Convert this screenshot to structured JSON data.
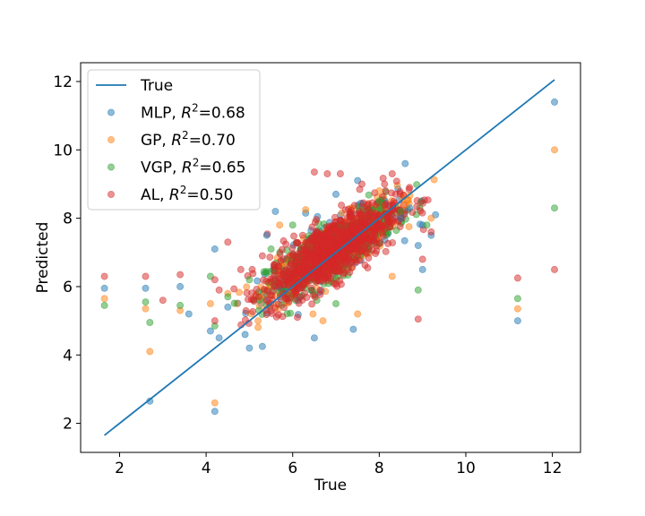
{
  "chart_data": {
    "type": "scatter",
    "xlabel": "True",
    "ylabel": "Predicted",
    "xlim": [
      1.1,
      12.65
    ],
    "ylim": [
      1.15,
      12.55
    ],
    "xticks": [
      2,
      4,
      6,
      8,
      10,
      12
    ],
    "yticks": [
      2,
      4,
      6,
      8,
      10,
      12
    ],
    "legend_position": "upper-left",
    "line": {
      "name": "True",
      "color": "#1f77b4",
      "x": [
        1.65,
        12.05
      ],
      "y": [
        1.65,
        12.05
      ]
    },
    "series": [
      {
        "name": "MLP",
        "r2": "0.68",
        "color": "#1f77b4",
        "points": [
          [
            1.65,
            5.95
          ],
          [
            2.6,
            5.95
          ],
          [
            2.7,
            2.65
          ],
          [
            3.4,
            6.0
          ],
          [
            3.6,
            5.2
          ],
          [
            4.1,
            4.7
          ],
          [
            4.2,
            2.35
          ],
          [
            4.3,
            4.5
          ],
          [
            4.2,
            7.1
          ],
          [
            4.5,
            5.4
          ],
          [
            4.9,
            4.6
          ],
          [
            5.0,
            4.2
          ],
          [
            5.3,
            4.25
          ],
          [
            5.4,
            7.5
          ],
          [
            5.6,
            8.2
          ],
          [
            6.3,
            8.15
          ],
          [
            6.5,
            4.5
          ],
          [
            7.4,
            4.75
          ],
          [
            7.0,
            8.7
          ],
          [
            7.5,
            9.1
          ],
          [
            8.5,
            8.0
          ],
          [
            8.6,
            9.6
          ],
          [
            8.7,
            8.3
          ],
          [
            8.9,
            7.2
          ],
          [
            9.0,
            6.5
          ],
          [
            9.0,
            7.8
          ],
          [
            9.3,
            8.1
          ],
          [
            9.2,
            7.5
          ],
          [
            11.2,
            5.0
          ],
          [
            12.05,
            11.4
          ]
        ]
      },
      {
        "name": "GP",
        "r2": "0.70",
        "color": "#ff7f0e",
        "points": [
          [
            1.65,
            5.65
          ],
          [
            2.6,
            5.35
          ],
          [
            2.7,
            4.1
          ],
          [
            3.4,
            5.3
          ],
          [
            4.2,
            2.6
          ],
          [
            4.1,
            5.5
          ],
          [
            4.5,
            5.8
          ],
          [
            5.2,
            5.0
          ],
          [
            5.7,
            7.8
          ],
          [
            6.3,
            8.25
          ],
          [
            6.7,
            5.0
          ],
          [
            7.5,
            5.2
          ],
          [
            8.0,
            8.8
          ],
          [
            8.6,
            8.4
          ],
          [
            8.3,
            6.3
          ],
          [
            9.2,
            8.0
          ],
          [
            11.2,
            5.35
          ],
          [
            12.05,
            10.0
          ]
        ]
      },
      {
        "name": "VGP",
        "r2": "0.65",
        "color": "#2ca02c",
        "points": [
          [
            1.65,
            5.45
          ],
          [
            2.6,
            5.55
          ],
          [
            2.7,
            4.95
          ],
          [
            3.4,
            5.45
          ],
          [
            4.1,
            6.3
          ],
          [
            4.2,
            4.85
          ],
          [
            4.5,
            5.7
          ],
          [
            5.0,
            6.2
          ],
          [
            5.5,
            7.1
          ],
          [
            6.0,
            7.8
          ],
          [
            7.0,
            5.5
          ],
          [
            8.0,
            8.5
          ],
          [
            8.5,
            8.2
          ],
          [
            8.9,
            5.9
          ],
          [
            9.1,
            7.8
          ],
          [
            11.2,
            5.65
          ],
          [
            12.05,
            8.3
          ]
        ]
      },
      {
        "name": "AL",
        "r2": "0.50",
        "color": "#d62728",
        "points": [
          [
            1.65,
            6.3
          ],
          [
            2.6,
            6.3
          ],
          [
            3.4,
            6.35
          ],
          [
            3.0,
            5.6
          ],
          [
            4.2,
            6.2
          ],
          [
            4.2,
            5.0
          ],
          [
            4.3,
            5.9
          ],
          [
            4.5,
            7.3
          ],
          [
            4.8,
            6.5
          ],
          [
            5.3,
            6.9
          ],
          [
            5.4,
            5.6
          ],
          [
            6.5,
            9.35
          ],
          [
            6.8,
            9.3
          ],
          [
            7.1,
            9.3
          ],
          [
            7.6,
            9.0
          ],
          [
            8.3,
            9.3
          ],
          [
            8.7,
            8.9
          ],
          [
            9.0,
            6.8
          ],
          [
            8.9,
            5.05
          ],
          [
            9.2,
            7.6
          ],
          [
            11.2,
            6.25
          ],
          [
            12.05,
            6.5
          ]
        ]
      }
    ],
    "legend": [
      {
        "kind": "line",
        "label": "True",
        "color": "#1f77b4"
      },
      {
        "kind": "marker",
        "label": "MLP, ",
        "r2": "0.68",
        "color": "#1f77b4"
      },
      {
        "kind": "marker",
        "label": "GP, ",
        "r2": "0.70",
        "color": "#ff7f0e"
      },
      {
        "kind": "marker",
        "label": "VGP, ",
        "r2": "0.65",
        "color": "#2ca02c"
      },
      {
        "kind": "marker",
        "label": "AL, ",
        "r2": "0.50",
        "color": "#d62728"
      }
    ]
  }
}
